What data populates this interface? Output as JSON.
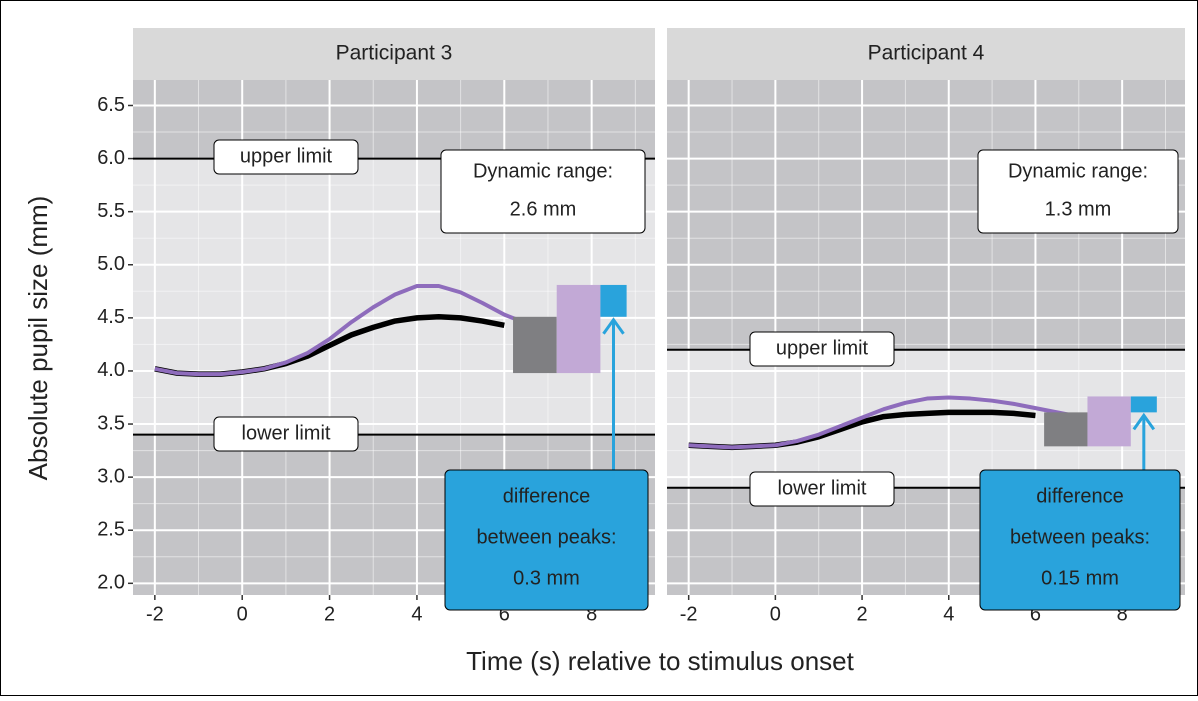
{
  "chart_data": {
    "type": "line",
    "xlabel": "Time (s) relative to stimulus onset",
    "ylabel": "Absolute pupil size (mm)",
    "xlim": [
      -2.5,
      9.45
    ],
    "ylim": [
      1.89,
      6.74
    ],
    "xticks": [
      -2,
      0,
      2,
      4,
      6,
      8
    ],
    "yticks": [
      {
        "value": 2,
        "label": "2.0"
      },
      2.5,
      {
        "value": 3,
        "label": "3.0"
      },
      3.5,
      {
        "value": 4,
        "label": "4.0"
      },
      4.5,
      {
        "value": 5,
        "label": "5.0"
      },
      5.5,
      {
        "value": 6,
        "label": "6.0"
      },
      6.5
    ],
    "grid": true,
    "panels": [
      {
        "title": "Participant 3",
        "x": [
          -2,
          -1.5,
          -1,
          -0.5,
          0,
          0.5,
          1,
          1.5,
          2,
          2.5,
          3,
          3.5,
          4,
          4.5,
          5,
          5.5,
          6,
          6.5
        ],
        "series": [
          {
            "color": "#000000",
            "values": [
              4.02,
              3.98,
              3.97,
              3.97,
              3.99,
              4.02,
              4.07,
              4.14,
              4.24,
              4.34,
              4.41,
              4.47,
              4.5,
              4.51,
              4.5,
              4.47,
              4.43,
              null
            ]
          },
          {
            "color": "#8e6cbc",
            "values": [
              4.02,
              3.98,
              3.97,
              3.97,
              3.99,
              4.02,
              4.08,
              4.17,
              4.3,
              4.46,
              4.6,
              4.72,
              4.8,
              4.8,
              4.74,
              4.64,
              4.53,
              4.45
            ]
          }
        ],
        "upper": 6.0,
        "lower": 3.4,
        "upper_label": "upper limit",
        "lower_label": "lower limit",
        "range_label": [
          "Dynamic range:",
          "2.6 mm"
        ],
        "base": 3.98,
        "peaks": [
          4.51,
          4.81
        ],
        "peak_colors": [
          "#7f7f82",
          "#c2a9d6"
        ],
        "difference": 0.3,
        "difference_color": "#29a3dc",
        "difference_label": [
          "difference",
          "between peaks:",
          "0.3 mm"
        ]
      },
      {
        "title": "Participant 4",
        "x": [
          -2,
          -1.5,
          -1,
          -0.5,
          0,
          0.5,
          1,
          1.5,
          2,
          2.5,
          3,
          3.5,
          4,
          4.5,
          5,
          5.5,
          6,
          6.5,
          7
        ],
        "series": [
          {
            "color": "#000000",
            "values": [
              3.3,
              3.29,
              3.28,
              3.29,
              3.3,
              3.33,
              3.38,
              3.45,
              3.52,
              3.57,
              3.59,
              3.6,
              3.61,
              3.61,
              3.61,
              3.6,
              3.58,
              null,
              null
            ]
          },
          {
            "color": "#8e6cbc",
            "values": [
              3.3,
              3.29,
              3.28,
              3.29,
              3.3,
              3.34,
              3.4,
              3.48,
              3.56,
              3.64,
              3.7,
              3.74,
              3.75,
              3.74,
              3.72,
              3.69,
              3.65,
              3.61,
              3.57
            ]
          }
        ],
        "upper": 4.2,
        "lower": 2.9,
        "upper_label": "upper limit",
        "lower_label": "lower limit",
        "range_label": [
          "Dynamic range:",
          "1.3 mm"
        ],
        "base": 3.29,
        "peaks": [
          3.61,
          3.76
        ],
        "peak_colors": [
          "#7f7f82",
          "#c2a9d6"
        ],
        "difference": 0.15,
        "difference_color": "#29a3dc",
        "difference_label": [
          "difference",
          "between peaks:",
          "0.15 mm"
        ]
      }
    ]
  }
}
